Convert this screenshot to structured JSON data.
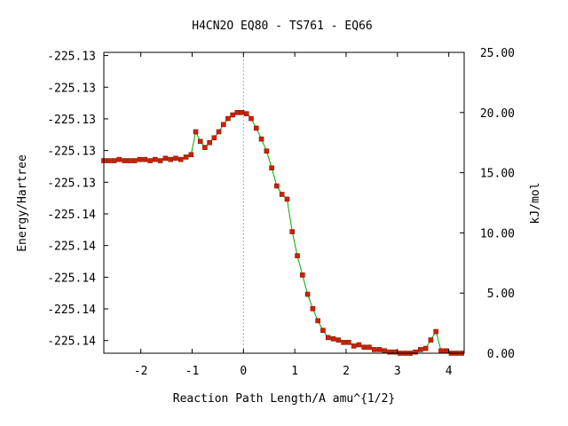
{
  "chart_data": {
    "type": "line",
    "title": "H4CN2O    EQ80 - TS761 - EQ66",
    "xlabel": "Reaction Path Length/A amu^{1/2}",
    "ylabel": "Energy/Hartree",
    "y2label": "kJ/mol",
    "xlim": [
      -2.72,
      4.3
    ],
    "ylim": [
      -225.1447,
      -225.1352
    ],
    "y2lim": [
      0,
      25
    ],
    "x_ticks": [
      -2,
      -1,
      0,
      1,
      2,
      3,
      4
    ],
    "x_tick_labels": [
      "-2",
      "-1",
      "0",
      "1",
      "2",
      "3",
      "4"
    ],
    "y_ticks": [
      -225.1353,
      -225.1363,
      -225.1373,
      -225.1383,
      -225.1393,
      -225.1403,
      -225.1413,
      -225.1423,
      -225.1433,
      -225.1443
    ],
    "y_tick_labels": [
      "-225.13",
      "-225.13",
      "-225.13",
      "-225.13",
      "-225.13",
      "-225.14",
      "-225.14",
      "-225.14",
      "-225.14",
      "-225.14"
    ],
    "y2_ticks": [
      0,
      5,
      10,
      15,
      20,
      25
    ],
    "y2_tick_labels": [
      "0.00",
      "5.00",
      "10.00",
      "15.00",
      "20.00",
      "25.00"
    ],
    "ts_marker_x": 0,
    "grid": false,
    "line_color": "#00aa00",
    "marker_color": "#cc2200",
    "marker_edge_color": "#8b1500",
    "ts_line_color": "#aaaaaa",
    "series": [
      {
        "x": [
          -2.72,
          -2.62,
          -2.52,
          -2.42,
          -2.32,
          -2.22,
          -2.12,
          -2.02,
          -1.92,
          -1.82,
          -1.72,
          -1.62,
          -1.52,
          -1.42,
          -1.32,
          -1.22,
          -1.12,
          -1.02,
          -0.93,
          -0.84,
          -0.75,
          -0.66,
          -0.57,
          -0.48,
          -0.39,
          -0.3,
          -0.21,
          -0.12,
          -0.03,
          0.06,
          0.15,
          0.25,
          0.35,
          0.45,
          0.55,
          0.65,
          0.75,
          0.85,
          0.95,
          1.05,
          1.15,
          1.25,
          1.35,
          1.45,
          1.55,
          1.65,
          1.75,
          1.85,
          1.95,
          2.05,
          2.15,
          2.25,
          2.35,
          2.45,
          2.55,
          2.65,
          2.75,
          2.85,
          2.95,
          3.05,
          3.15,
          3.25,
          3.35,
          3.45,
          3.55,
          3.65,
          3.75,
          3.85,
          3.95,
          4.05,
          4.15,
          4.25
        ],
        "values": [
          16.0,
          16.0,
          16.0,
          16.1,
          16.0,
          16.0,
          16.0,
          16.1,
          16.1,
          16.0,
          16.1,
          16.0,
          16.2,
          16.1,
          16.2,
          16.1,
          16.3,
          16.5,
          18.4,
          17.6,
          17.1,
          17.5,
          17.9,
          18.4,
          19.0,
          19.5,
          19.8,
          20.0,
          20.0,
          19.9,
          19.5,
          18.7,
          17.8,
          16.8,
          15.4,
          13.9,
          13.2,
          12.8,
          10.1,
          8.1,
          6.5,
          4.9,
          3.7,
          2.7,
          1.9,
          1.3,
          1.2,
          1.1,
          0.9,
          0.9,
          0.6,
          0.7,
          0.5,
          0.5,
          0.3,
          0.3,
          0.2,
          0.1,
          0.1,
          0.0,
          0.0,
          0.0,
          0.1,
          0.3,
          0.4,
          1.1,
          1.8,
          0.2,
          0.2,
          0.0,
          0.0,
          0.0
        ]
      }
    ]
  }
}
